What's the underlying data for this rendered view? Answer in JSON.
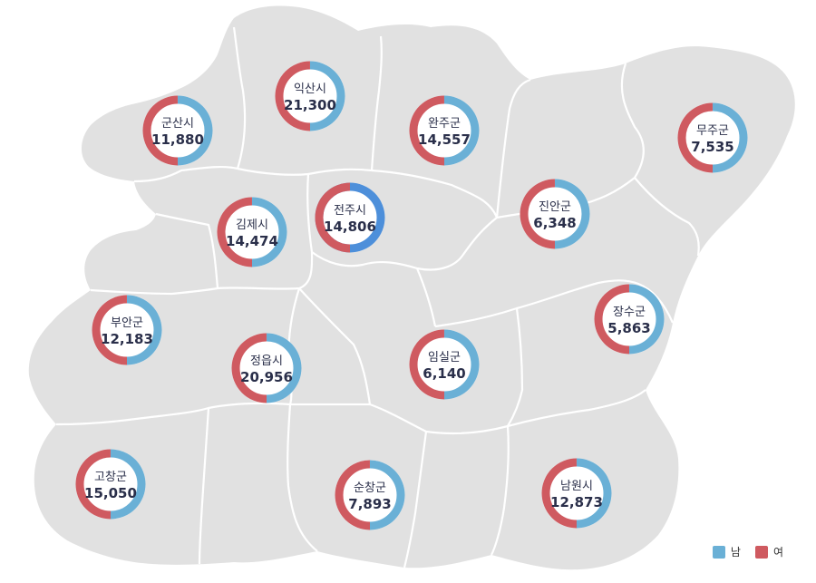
{
  "colors": {
    "male": "#6ab0d6",
    "female": "#cf5a60",
    "highlight": "#4d8fda",
    "land": "#e1e1e1",
    "border": "#ffffff"
  },
  "legend": {
    "male_label": "남",
    "female_label": "여"
  },
  "regions": [
    {
      "id": "gunsan",
      "name": "군산시",
      "value": "11,880",
      "male_share": 0.5
    },
    {
      "id": "iksan",
      "name": "익산시",
      "value": "21,300",
      "male_share": 0.5
    },
    {
      "id": "wanju",
      "name": "완주군",
      "value": "14,557",
      "male_share": 0.5
    },
    {
      "id": "muju",
      "name": "무주군",
      "value": "7,535",
      "male_share": 0.5
    },
    {
      "id": "gimje",
      "name": "김제시",
      "value": "14,474",
      "male_share": 0.5
    },
    {
      "id": "jeonju",
      "name": "전주시",
      "value": "14,806",
      "male_share": 0.5,
      "highlight": true
    },
    {
      "id": "jinan",
      "name": "진안군",
      "value": "6,348",
      "male_share": 0.5
    },
    {
      "id": "buan",
      "name": "부안군",
      "value": "12,183",
      "male_share": 0.5
    },
    {
      "id": "jeongeup",
      "name": "정읍시",
      "value": "20,956",
      "male_share": 0.5
    },
    {
      "id": "imsil",
      "name": "임실군",
      "value": "6,140",
      "male_share": 0.5
    },
    {
      "id": "jangsu",
      "name": "장수군",
      "value": "5,863",
      "male_share": 0.5
    },
    {
      "id": "gochang",
      "name": "고창군",
      "value": "15,050",
      "male_share": 0.5
    },
    {
      "id": "sunchang",
      "name": "순창군",
      "value": "7,893",
      "male_share": 0.5
    },
    {
      "id": "namwon",
      "name": "남원시",
      "value": "12,873",
      "male_share": 0.5
    }
  ]
}
